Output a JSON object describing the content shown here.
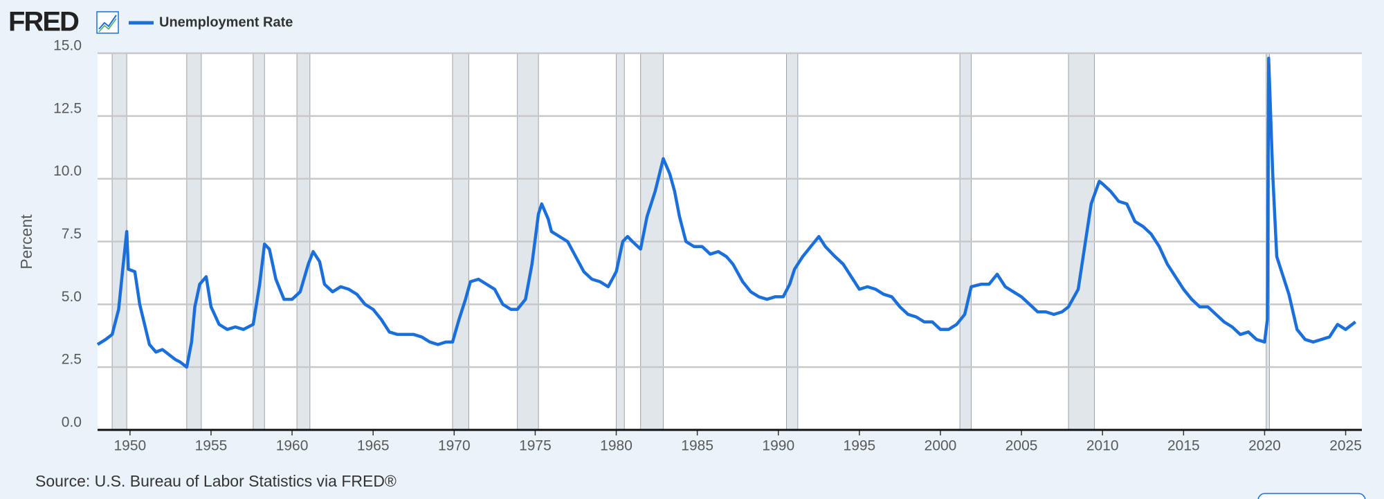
{
  "chart_data": {
    "type": "line",
    "logo": "FRED",
    "ylabel": "Percent",
    "source": "Source: U.S. Bureau of Labor Statistics via FRED®",
    "x": [
      1948.0,
      1948.5,
      1948.9,
      1949.3,
      1949.6,
      1949.8,
      1949.9,
      1950.3,
      1950.6,
      1950.9,
      1951.2,
      1951.6,
      1952.0,
      1952.4,
      1952.8,
      1953.1,
      1953.5,
      1953.8,
      1954.0,
      1954.3,
      1954.7,
      1955.0,
      1955.5,
      1956.0,
      1956.5,
      1957.0,
      1957.6,
      1958.0,
      1958.3,
      1958.6,
      1959.0,
      1959.5,
      1960.0,
      1960.5,
      1961.0,
      1961.3,
      1961.7,
      1962.0,
      1962.5,
      1963.0,
      1963.5,
      1964.0,
      1964.5,
      1965.0,
      1965.5,
      1966.0,
      1966.5,
      1967.0,
      1967.5,
      1968.0,
      1968.5,
      1969.0,
      1969.5,
      1969.9,
      1970.3,
      1970.7,
      1971.0,
      1971.5,
      1972.0,
      1972.5,
      1973.0,
      1973.5,
      1973.9,
      1974.4,
      1974.8,
      1975.2,
      1975.4,
      1975.8,
      1976.0,
      1976.5,
      1977.0,
      1977.5,
      1978.0,
      1978.5,
      1979.0,
      1979.5,
      1980.0,
      1980.4,
      1980.7,
      1981.0,
      1981.5,
      1981.9,
      1982.4,
      1982.9,
      1983.3,
      1983.6,
      1983.9,
      1984.3,
      1984.8,
      1985.3,
      1985.8,
      1986.3,
      1986.8,
      1987.2,
      1987.8,
      1988.3,
      1988.8,
      1989.3,
      1989.8,
      1990.3,
      1990.7,
      1991.0,
      1991.5,
      1992.0,
      1992.5,
      1992.9,
      1993.5,
      1994.0,
      1994.5,
      1995.0,
      1995.5,
      1996.0,
      1996.5,
      1997.0,
      1997.5,
      1998.0,
      1998.5,
      1999.0,
      1999.5,
      2000.0,
      2000.5,
      2001.0,
      2001.5,
      2001.9,
      2002.5,
      2003.0,
      2003.5,
      2004.0,
      2004.5,
      2005.0,
      2005.5,
      2006.0,
      2006.5,
      2007.0,
      2007.5,
      2007.9,
      2008.5,
      2008.9,
      2009.3,
      2009.8,
      2010.0,
      2010.5,
      2011.0,
      2011.5,
      2012.0,
      2012.5,
      2013.0,
      2013.5,
      2014.0,
      2014.5,
      2015.0,
      2015.5,
      2016.0,
      2016.5,
      2017.0,
      2017.5,
      2018.0,
      2018.5,
      2019.0,
      2019.5,
      2020.0,
      2020.17,
      2020.25,
      2020.5,
      2020.75,
      2021.0,
      2021.5,
      2022.0,
      2022.5,
      2023.0,
      2023.5,
      2024.0,
      2024.5,
      2025.0,
      2025.6
    ],
    "series": [
      {
        "name": "Unemployment Rate",
        "color": "#1a6fdb",
        "values": [
          3.4,
          3.6,
          3.8,
          4.8,
          6.7,
          7.9,
          6.4,
          6.3,
          5.0,
          4.2,
          3.4,
          3.1,
          3.2,
          3.0,
          2.8,
          2.7,
          2.5,
          3.5,
          4.9,
          5.8,
          6.1,
          4.9,
          4.2,
          4.0,
          4.1,
          4.0,
          4.2,
          5.8,
          7.4,
          7.2,
          6.0,
          5.2,
          5.2,
          5.5,
          6.6,
          7.1,
          6.7,
          5.8,
          5.5,
          5.7,
          5.6,
          5.4,
          5.0,
          4.8,
          4.4,
          3.9,
          3.8,
          3.8,
          3.8,
          3.7,
          3.5,
          3.4,
          3.5,
          3.5,
          4.4,
          5.2,
          5.9,
          6.0,
          5.8,
          5.6,
          5.0,
          4.8,
          4.8,
          5.2,
          6.6,
          8.6,
          9.0,
          8.4,
          7.9,
          7.7,
          7.5,
          6.9,
          6.3,
          6.0,
          5.9,
          5.7,
          6.3,
          7.5,
          7.7,
          7.5,
          7.2,
          8.5,
          9.5,
          10.8,
          10.2,
          9.5,
          8.5,
          7.5,
          7.3,
          7.3,
          7.0,
          7.1,
          6.9,
          6.6,
          5.9,
          5.5,
          5.3,
          5.2,
          5.3,
          5.3,
          5.8,
          6.4,
          6.9,
          7.3,
          7.7,
          7.3,
          6.9,
          6.6,
          6.1,
          5.6,
          5.7,
          5.6,
          5.4,
          5.3,
          4.9,
          4.6,
          4.5,
          4.3,
          4.3,
          4.0,
          4.0,
          4.2,
          4.6,
          5.7,
          5.8,
          5.8,
          6.2,
          5.7,
          5.5,
          5.3,
          5.0,
          4.7,
          4.7,
          4.6,
          4.7,
          4.9,
          5.6,
          7.3,
          9.0,
          9.9,
          9.8,
          9.5,
          9.1,
          9.0,
          8.3,
          8.1,
          7.8,
          7.3,
          6.6,
          6.1,
          5.6,
          5.2,
          4.9,
          4.9,
          4.6,
          4.3,
          4.1,
          3.8,
          3.9,
          3.6,
          3.5,
          4.4,
          14.8,
          10.2,
          6.9,
          6.4,
          5.4,
          4.0,
          3.6,
          3.5,
          3.6,
          3.7,
          4.2,
          4.0,
          4.3
        ]
      }
    ],
    "recessions": [
      [
        1948.9,
        1949.8
      ],
      [
        1953.5,
        1954.4
      ],
      [
        1957.6,
        1958.3
      ],
      [
        1960.3,
        1961.1
      ],
      [
        1969.9,
        1970.9
      ],
      [
        1973.9,
        1975.2
      ],
      [
        1980.0,
        1980.5
      ],
      [
        1981.5,
        1982.9
      ],
      [
        1990.5,
        1991.2
      ],
      [
        2001.2,
        2001.9
      ],
      [
        2007.9,
        2009.5
      ],
      [
        2020.1,
        2020.3
      ]
    ],
    "recession_color": "#e1e6ea",
    "xlim": [
      1948,
      2026
    ],
    "xticks": [
      1950,
      1955,
      1960,
      1965,
      1970,
      1975,
      1980,
      1985,
      1990,
      1995,
      2000,
      2005,
      2010,
      2015,
      2020,
      2025
    ],
    "ylim": [
      0,
      15
    ],
    "yticks": [
      {
        "value": 0,
        "label": "0.0"
      },
      2.5,
      {
        "value": 5,
        "label": "5.0"
      },
      7.5,
      {
        "value": 10,
        "label": "10.0"
      },
      12.5,
      {
        "value": 15,
        "label": "15.0"
      }
    ],
    "grid": true
  }
}
